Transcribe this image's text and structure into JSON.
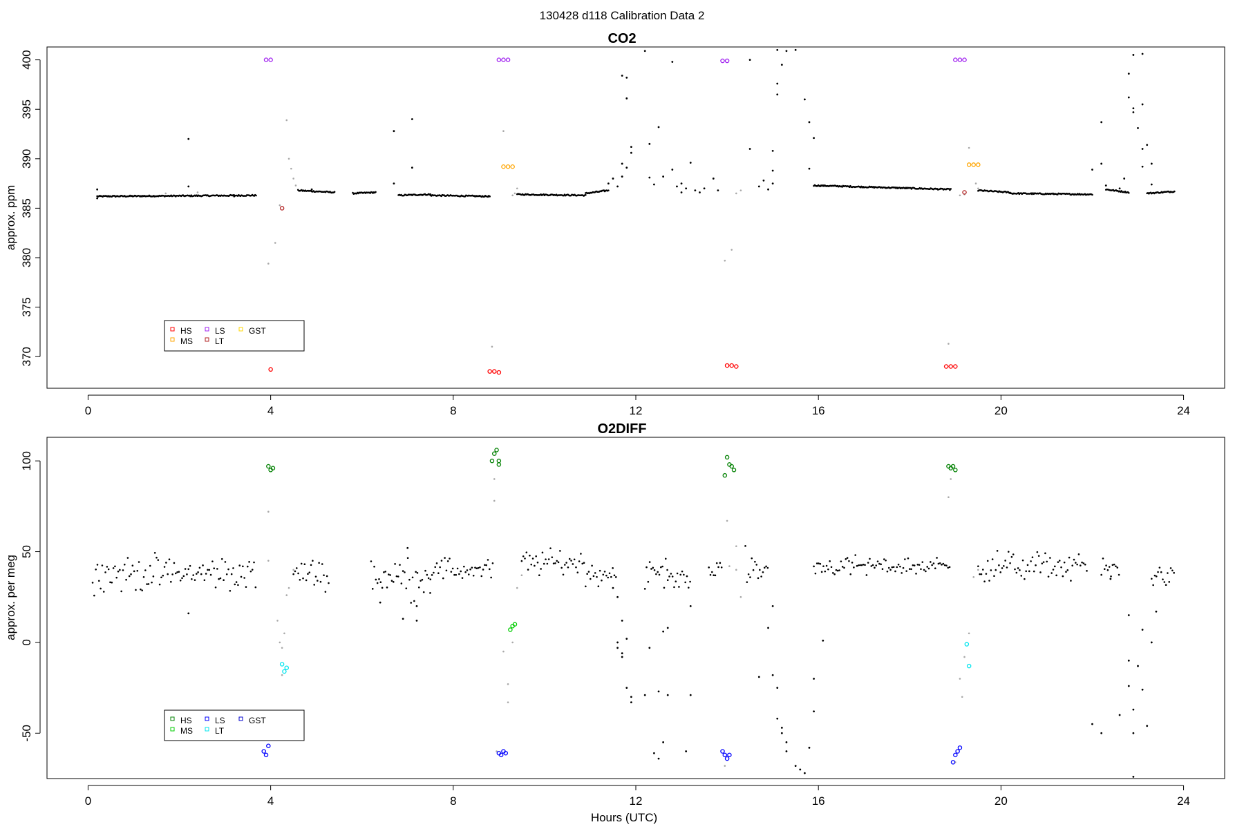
{
  "figure": {
    "title": "130428   d118   Calibration Data 2",
    "colors": {
      "data": "#000000",
      "filtered": "#a8a8a8",
      "HS_co2": "#ff0000",
      "MS_co2": "#ffa500",
      "LS_co2": "#a020f0",
      "LT_co2": "#b22222",
      "GST_co2": "#ffd700",
      "HS_o2": "#008000",
      "MS_o2": "#00cd00",
      "LS_o2": "#0000ff",
      "LT_o2": "#00e5ee",
      "GST_o2": "#0000cd"
    }
  },
  "chart_data": [
    {
      "type": "scatter",
      "title": "CO2",
      "xlabel": "",
      "ylabel": "approx. ppm",
      "xlim": [
        -0.9,
        24.9
      ],
      "ylim": [
        366.8,
        401.3
      ],
      "xticks": [
        "0",
        "4",
        "8",
        "12",
        "16",
        "20",
        "24"
      ],
      "yticks": [
        "370",
        "375",
        "380",
        "385",
        "390",
        "395",
        "400"
      ],
      "legend": {
        "position": "bottom-left",
        "entries": [
          "HS",
          "MS",
          "LS",
          "LT",
          "GST"
        ]
      },
      "baseline_segments": [
        [
          0.2,
          3.7,
          386.2,
          386.3
        ],
        [
          4.6,
          5.4,
          386.8,
          386.6
        ],
        [
          5.8,
          6.3,
          386.5,
          386.6
        ],
        [
          6.8,
          7.5,
          386.3,
          386.4
        ],
        [
          7.5,
          8.8,
          386.3,
          386.2
        ],
        [
          9.4,
          10.9,
          386.4,
          386.3
        ],
        [
          10.9,
          11.4,
          386.5,
          386.8
        ],
        [
          15.9,
          18.9,
          387.3,
          386.9
        ],
        [
          19.5,
          20.2,
          386.8,
          386.6
        ],
        [
          20.2,
          22.0,
          386.5,
          386.4
        ],
        [
          22.3,
          22.8,
          386.9,
          386.6
        ],
        [
          23.2,
          23.8,
          386.5,
          386.7
        ]
      ],
      "scatter_points": [
        [
          0.2,
          386.9
        ],
        [
          2.2,
          392.0
        ],
        [
          2.2,
          387.2
        ],
        [
          6.7,
          392.8
        ],
        [
          7.1,
          394.0
        ],
        [
          7.1,
          389.1
        ],
        [
          6.7,
          387.5
        ],
        [
          4.9,
          386.9
        ],
        [
          11.3,
          386.8
        ],
        [
          11.4,
          387.5
        ],
        [
          11.5,
          388.0
        ],
        [
          11.6,
          387.2
        ],
        [
          11.7,
          388.2
        ],
        [
          11.7,
          389.5
        ],
        [
          11.8,
          389.1
        ],
        [
          11.9,
          390.6
        ],
        [
          11.9,
          391.2
        ],
        [
          11.8,
          398.2
        ],
        [
          11.7,
          398.4
        ],
        [
          11.8,
          396.1
        ],
        [
          12.3,
          391.5
        ],
        [
          12.3,
          388.1
        ],
        [
          12.4,
          387.4
        ],
        [
          12.5,
          393.2
        ],
        [
          12.6,
          388.2
        ],
        [
          12.8,
          388.9
        ],
        [
          12.9,
          387.2
        ],
        [
          12.8,
          399.8
        ],
        [
          13.0,
          387.5
        ],
        [
          13.0,
          386.6
        ],
        [
          13.1,
          387.0
        ],
        [
          13.2,
          389.6
        ],
        [
          13.3,
          386.8
        ],
        [
          13.4,
          386.6
        ],
        [
          13.5,
          387.0
        ],
        [
          13.7,
          388.0
        ],
        [
          13.8,
          386.8
        ],
        [
          12.2,
          400.9
        ],
        [
          14.5,
          400.0
        ],
        [
          14.5,
          391.0
        ],
        [
          14.7,
          387.2
        ],
        [
          14.8,
          387.8
        ],
        [
          14.9,
          386.9
        ],
        [
          15.0,
          387.5
        ],
        [
          15.0,
          388.8
        ],
        [
          15.0,
          390.8
        ],
        [
          15.1,
          396.5
        ],
        [
          15.1,
          397.6
        ],
        [
          15.2,
          399.5
        ],
        [
          15.1,
          401.0
        ],
        [
          15.3,
          400.9
        ],
        [
          15.5,
          401.0
        ],
        [
          15.7,
          396.0
        ],
        [
          15.8,
          393.7
        ],
        [
          15.9,
          392.1
        ],
        [
          15.8,
          389.0
        ],
        [
          22.0,
          388.9
        ],
        [
          22.2,
          393.7
        ],
        [
          22.2,
          389.5
        ],
        [
          22.3,
          387.3
        ],
        [
          22.6,
          387.0
        ],
        [
          22.7,
          388.0
        ],
        [
          22.8,
          396.2
        ],
        [
          22.8,
          398.6
        ],
        [
          22.9,
          395.1
        ],
        [
          22.9,
          394.7
        ],
        [
          23.0,
          393.1
        ],
        [
          23.1,
          391.0
        ],
        [
          23.1,
          395.5
        ],
        [
          23.1,
          389.2
        ],
        [
          23.2,
          391.4
        ],
        [
          23.3,
          389.5
        ],
        [
          23.3,
          387.4
        ],
        [
          22.9,
          400.5
        ],
        [
          23.1,
          400.6
        ],
        [
          0.2,
          386.0
        ],
        [
          3.2,
          386.2
        ]
      ],
      "filtered_points": [
        [
          3.95,
          379.4
        ],
        [
          4.1,
          381.5
        ],
        [
          4.2,
          385.3
        ],
        [
          4.35,
          393.9
        ],
        [
          4.4,
          390.0
        ],
        [
          4.45,
          389.0
        ],
        [
          4.5,
          388.0
        ],
        [
          4.55,
          387.3
        ],
        [
          8.85,
          371.0
        ],
        [
          9.1,
          392.8
        ],
        [
          9.3,
          386.3
        ],
        [
          9.35,
          386.5
        ],
        [
          9.4,
          387.0
        ],
        [
          13.95,
          379.7
        ],
        [
          14.1,
          380.8
        ],
        [
          14.2,
          386.5
        ],
        [
          14.3,
          386.8
        ],
        [
          18.85,
          371.3
        ],
        [
          19.1,
          386.3
        ],
        [
          19.2,
          386.4
        ],
        [
          19.3,
          391.1
        ],
        [
          19.45,
          387.5
        ],
        [
          19.5,
          387.0
        ],
        [
          2.4,
          386.6
        ],
        [
          1.7,
          386.5
        ]
      ],
      "calibration_points": {
        "HS": [
          [
            4.0,
            368.7
          ],
          [
            8.8,
            368.5
          ],
          [
            8.9,
            368.5
          ],
          [
            9.0,
            368.4
          ],
          [
            14.0,
            369.1
          ],
          [
            14.1,
            369.1
          ],
          [
            14.2,
            369.0
          ],
          [
            18.8,
            369.0
          ],
          [
            18.9,
            369.0
          ],
          [
            19.0,
            369.0
          ]
        ],
        "MS": [
          [
            9.1,
            389.2
          ],
          [
            9.2,
            389.2
          ],
          [
            9.3,
            389.2
          ],
          [
            19.3,
            389.4
          ],
          [
            19.4,
            389.4
          ],
          [
            19.5,
            389.4
          ]
        ],
        "LS": [
          [
            3.9,
            400.0
          ],
          [
            4.0,
            400.0
          ],
          [
            9.0,
            400.0
          ],
          [
            9.1,
            400.0
          ],
          [
            9.2,
            400.0
          ],
          [
            13.9,
            399.9
          ],
          [
            14.0,
            399.9
          ],
          [
            19.0,
            400.0
          ],
          [
            19.1,
            400.0
          ],
          [
            19.2,
            400.0
          ]
        ],
        "LT": [
          [
            4.25,
            385.0
          ],
          [
            19.2,
            386.6
          ]
        ],
        "GST": []
      }
    },
    {
      "type": "scatter",
      "title": "O2DIFF",
      "xlabel": "Hours (UTC)",
      "ylabel": "approx. per meg",
      "xlim": [
        -0.9,
        24.9
      ],
      "ylim": [
        -75,
        113
      ],
      "xticks": [
        "0",
        "4",
        "8",
        "12",
        "16",
        "20",
        "24"
      ],
      "yticks": [
        "-50",
        "0",
        "50",
        "100"
      ],
      "legend": {
        "position": "bottom-left",
        "entries": [
          "HS",
          "MS",
          "LS",
          "LT",
          "GST"
        ]
      },
      "cloud_segments": [
        [
          0.1,
          3.7,
          38,
          7
        ],
        [
          4.5,
          5.3,
          38,
          6
        ],
        [
          6.2,
          7.5,
          36,
          8
        ],
        [
          7.5,
          8.9,
          40,
          5
        ],
        [
          9.5,
          10.9,
          44,
          5
        ],
        [
          10.9,
          11.6,
          38,
          5
        ],
        [
          12.2,
          12.7,
          38,
          6
        ],
        [
          12.7,
          13.2,
          36,
          6
        ],
        [
          13.6,
          13.9,
          40,
          4
        ],
        [
          14.4,
          14.9,
          40,
          8
        ],
        [
          15.9,
          18.9,
          42,
          4
        ],
        [
          19.5,
          21.9,
          42,
          6
        ],
        [
          22.2,
          22.6,
          40,
          5
        ],
        [
          23.3,
          23.8,
          37,
          4
        ]
      ],
      "scatter_points": [
        [
          2.2,
          16
        ],
        [
          6.4,
          22
        ],
        [
          6.9,
          13
        ],
        [
          7.2,
          12
        ],
        [
          7.2,
          20
        ],
        [
          7.0,
          52
        ],
        [
          11.5,
          30
        ],
        [
          11.6,
          25
        ],
        [
          11.7,
          12
        ],
        [
          11.6,
          0
        ],
        [
          11.6,
          -3
        ],
        [
          11.7,
          -6
        ],
        [
          11.7,
          -8
        ],
        [
          11.8,
          2
        ],
        [
          11.8,
          -25
        ],
        [
          11.9,
          -30
        ],
        [
          11.9,
          -33
        ],
        [
          12.3,
          -3
        ],
        [
          12.2,
          -29
        ],
        [
          12.5,
          -27
        ],
        [
          12.6,
          6
        ],
        [
          12.7,
          8
        ],
        [
          12.7,
          -29
        ],
        [
          13.2,
          -29
        ],
        [
          13.2,
          20
        ],
        [
          12.4,
          -61
        ],
        [
          12.5,
          -64
        ],
        [
          12.6,
          -55
        ],
        [
          13.1,
          -60
        ],
        [
          15.0,
          20
        ],
        [
          15.0,
          -18
        ],
        [
          15.1,
          -25
        ],
        [
          15.1,
          -42
        ],
        [
          15.2,
          -47
        ],
        [
          15.2,
          -50
        ],
        [
          15.3,
          -55
        ],
        [
          15.3,
          -60
        ],
        [
          15.5,
          -68
        ],
        [
          15.6,
          -70
        ],
        [
          15.7,
          -72
        ],
        [
          15.8,
          -58
        ],
        [
          15.9,
          -38
        ],
        [
          15.9,
          -20
        ],
        [
          16.1,
          1
        ],
        [
          14.7,
          -19
        ],
        [
          14.9,
          8
        ],
        [
          22.0,
          -45
        ],
        [
          22.2,
          -50
        ],
        [
          22.4,
          35
        ],
        [
          22.8,
          15
        ],
        [
          22.8,
          -10
        ],
        [
          22.8,
          -24
        ],
        [
          22.9,
          -37
        ],
        [
          22.9,
          -50
        ],
        [
          23.0,
          -13
        ],
        [
          23.1,
          7
        ],
        [
          23.1,
          -26
        ],
        [
          23.2,
          -46
        ],
        [
          23.3,
          0
        ],
        [
          23.4,
          17
        ],
        [
          22.9,
          -74
        ],
        [
          22.6,
          -40
        ]
      ],
      "filtered_points": [
        [
          3.95,
          72
        ],
        [
          3.95,
          45
        ],
        [
          4.15,
          12
        ],
        [
          4.2,
          0
        ],
        [
          4.25,
          -3
        ],
        [
          4.3,
          5
        ],
        [
          4.25,
          -18
        ],
        [
          4.35,
          26
        ],
        [
          4.4,
          30
        ],
        [
          4.5,
          40
        ],
        [
          8.9,
          90
        ],
        [
          8.9,
          78
        ],
        [
          9.1,
          -5
        ],
        [
          9.2,
          -23
        ],
        [
          9.2,
          -33
        ],
        [
          9.3,
          0
        ],
        [
          9.4,
          30
        ],
        [
          9.5,
          37
        ],
        [
          8.95,
          -60
        ],
        [
          14.0,
          67
        ],
        [
          14.05,
          42
        ],
        [
          14.2,
          40
        ],
        [
          14.3,
          25
        ],
        [
          13.95,
          -68
        ],
        [
          14.2,
          53
        ],
        [
          18.85,
          80
        ],
        [
          18.9,
          90
        ],
        [
          19.1,
          -20
        ],
        [
          19.15,
          -30
        ],
        [
          19.2,
          -8
        ],
        [
          19.3,
          5
        ],
        [
          19.4,
          36
        ],
        [
          19.5,
          40
        ],
        [
          19.0,
          -66
        ]
      ],
      "calibration_points": {
        "HS": [
          [
            3.95,
            97
          ],
          [
            4.0,
            95
          ],
          [
            4.05,
            96
          ],
          [
            8.85,
            100
          ],
          [
            8.9,
            104
          ],
          [
            8.95,
            106
          ],
          [
            9.0,
            100
          ],
          [
            9.0,
            98
          ],
          [
            14.0,
            102
          ],
          [
            14.05,
            98
          ],
          [
            14.1,
            97
          ],
          [
            14.15,
            95
          ],
          [
            13.95,
            92
          ],
          [
            18.85,
            97
          ],
          [
            18.9,
            96
          ],
          [
            18.95,
            97
          ],
          [
            19.0,
            95
          ]
        ],
        "MS": [
          [
            9.25,
            7
          ],
          [
            9.3,
            9
          ],
          [
            9.35,
            10
          ]
        ],
        "LS": [
          [
            3.85,
            -60
          ],
          [
            3.9,
            -62
          ],
          [
            3.95,
            -57
          ],
          [
            9.0,
            -61
          ],
          [
            9.05,
            -62
          ],
          [
            9.1,
            -60
          ],
          [
            9.15,
            -61
          ],
          [
            13.9,
            -60
          ],
          [
            13.95,
            -62
          ],
          [
            14.0,
            -64
          ],
          [
            14.05,
            -62
          ],
          [
            18.95,
            -66
          ],
          [
            19.0,
            -62
          ],
          [
            19.05,
            -60
          ],
          [
            19.1,
            -58
          ]
        ],
        "LT": [
          [
            4.25,
            -12
          ],
          [
            4.3,
            -16
          ],
          [
            4.35,
            -14
          ],
          [
            19.25,
            -1
          ],
          [
            19.3,
            -13
          ]
        ],
        "GST": []
      }
    }
  ]
}
